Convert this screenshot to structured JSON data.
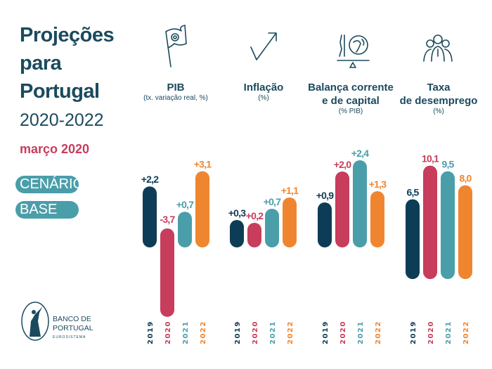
{
  "title": {
    "line1": "Projeções",
    "line2": "para",
    "line3": "Portugal",
    "years": "2020-2022",
    "date": "março 2020"
  },
  "scenario": {
    "line1": "CENÁRIO",
    "line2": "BASE"
  },
  "logo": {
    "line1": "BANCO DE",
    "line2": "PORTUGAL",
    "line3": "EUROSISTEMA"
  },
  "colors": {
    "2019": "#0d3d56",
    "2020": "#c83c5c",
    "2021": "#4a9eaa",
    "2022": "#f08530",
    "text": "#1b4a5e"
  },
  "chart_data": [
    {
      "type": "bar",
      "title": "PIB",
      "subtitle": "(tx. variação real, %)",
      "icon": "flag-icon",
      "categories": [
        "2019",
        "2020",
        "2021",
        "2022"
      ],
      "values": [
        2.2,
        -3.7,
        0.7,
        3.1
      ],
      "labels": [
        "+2,2",
        "-3,7",
        "+0,7",
        "+3,1"
      ]
    },
    {
      "type": "bar",
      "title": "Inflação",
      "subtitle": "(%)",
      "icon": "trend-up-icon",
      "categories": [
        "2019",
        "2020",
        "2021",
        "2022"
      ],
      "values": [
        0.3,
        0.2,
        0.7,
        1.1
      ],
      "labels": [
        "+0,3",
        "+0,2",
        "+0,7",
        "+1,1"
      ]
    },
    {
      "type": "bar",
      "title": "Balança corrente\ne de capital",
      "subtitle": "(% PIB)",
      "icon": "balance-globe-icon",
      "categories": [
        "2019",
        "2020",
        "2021",
        "2022"
      ],
      "values": [
        0.9,
        2.0,
        2.4,
        1.3
      ],
      "labels": [
        "+0,9",
        "+2,0",
        "+2,4",
        "+1,3"
      ]
    },
    {
      "type": "bar",
      "title": "Taxa\nde desemprego",
      "subtitle": "(%)",
      "icon": "people-icon",
      "categories": [
        "2019",
        "2020",
        "2021",
        "2022"
      ],
      "values": [
        6.5,
        10.1,
        9.5,
        8.0
      ],
      "labels": [
        "6,5",
        "10,1",
        "9,5",
        "8,0"
      ]
    }
  ]
}
